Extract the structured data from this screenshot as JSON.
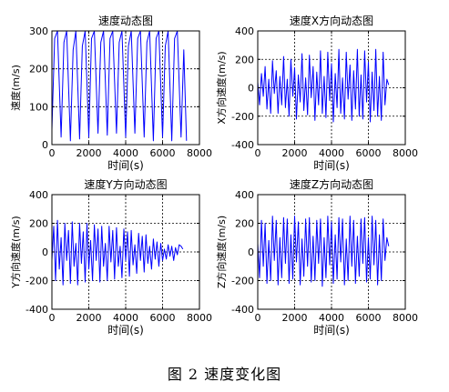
{
  "figure_caption": "图 2  速度变化图",
  "colors": {
    "line": "#0000ff",
    "axes": "#000000",
    "grid": "#000000",
    "background": "#ffffff"
  },
  "chart_data": [
    {
      "type": "line",
      "title": "速度动态图",
      "xlabel": "时间(s)",
      "ylabel": "速度(m/s)",
      "xlim": [
        0,
        8000
      ],
      "ylim": [
        0,
        300
      ],
      "xticks": [
        0,
        2000,
        4000,
        6000,
        8000
      ],
      "yticks": [
        0,
        100,
        200,
        300
      ],
      "grid": true,
      "series": [
        {
          "x": [
            0,
            150,
            300,
            500,
            650,
            800,
            1000,
            1150,
            1300,
            1500,
            1650,
            1800,
            2000,
            2150,
            2300,
            2500,
            2650,
            2800,
            3000,
            3150,
            3300,
            3500,
            3650,
            3800,
            4000,
            4150,
            4300,
            4500,
            4650,
            4800,
            5000,
            5150,
            5300,
            5500,
            5650,
            5800,
            6000,
            6150,
            6300,
            6500,
            6650,
            6800,
            7000,
            7150,
            7300
          ],
          "y": [
            40,
            280,
            300,
            20,
            270,
            300,
            10,
            250,
            300,
            15,
            260,
            300,
            20,
            280,
            300,
            30,
            270,
            300,
            25,
            280,
            300,
            30,
            270,
            300,
            20,
            260,
            300,
            30,
            280,
            300,
            20,
            270,
            300,
            10,
            280,
            300,
            20,
            260,
            300,
            10,
            280,
            300,
            20,
            250,
            10
          ]
        }
      ]
    },
    {
      "type": "line",
      "title": "速度X方向动态图",
      "xlabel": "时间(s)",
      "ylabel": "X方向速度(m/s)",
      "xlim": [
        0,
        8000
      ],
      "ylim": [
        -400,
        400
      ],
      "xticks": [
        0,
        2000,
        4000,
        6000,
        8000
      ],
      "yticks": [
        -400,
        -200,
        0,
        200,
        400
      ],
      "grid": true,
      "series": [
        {
          "x": [
            0,
            100,
            200,
            300,
            400,
            500,
            600,
            700,
            800,
            900,
            1000,
            1100,
            1200,
            1300,
            1400,
            1500,
            1600,
            1700,
            1800,
            1900,
            2000,
            2100,
            2200,
            2300,
            2400,
            2500,
            2600,
            2700,
            2800,
            2900,
            3000,
            3100,
            3200,
            3300,
            3400,
            3500,
            3600,
            3700,
            3800,
            3900,
            4000,
            4100,
            4200,
            4300,
            4400,
            4500,
            4600,
            4700,
            4800,
            4900,
            5000,
            5100,
            5200,
            5300,
            5400,
            5500,
            5600,
            5700,
            5800,
            5900,
            6000,
            6100,
            6200,
            6300,
            6400,
            6500,
            6600,
            6700,
            6800,
            6900,
            7000,
            7100
          ],
          "y": [
            40,
            -120,
            100,
            -60,
            150,
            -150,
            60,
            -180,
            190,
            -40,
            120,
            -180,
            80,
            -120,
            220,
            -140,
            60,
            -200,
            200,
            -60,
            140,
            -220,
            90,
            -100,
            240,
            -160,
            70,
            -190,
            230,
            -70,
            150,
            -230,
            110,
            -120,
            260,
            -180,
            80,
            -210,
            250,
            -90,
            170,
            -240,
            100,
            -140,
            270,
            -180,
            70,
            -220,
            250,
            -80,
            160,
            -230,
            120,
            -150,
            270,
            -200,
            90,
            -220,
            260,
            -100,
            180,
            -240,
            110,
            -160,
            270,
            -200,
            80,
            -230,
            250,
            -120,
            60,
            20
          ]
        }
      ]
    },
    {
      "type": "line",
      "title": "速度Y方向动态图",
      "xlabel": "时间(s)",
      "ylabel": "Y方向速度(m/s)",
      "xlim": [
        0,
        8000
      ],
      "ylim": [
        -400,
        400
      ],
      "xticks": [
        0,
        2000,
        4000,
        6000,
        8000
      ],
      "yticks": [
        -400,
        -200,
        0,
        200,
        400
      ],
      "grid": true,
      "series": [
        {
          "x": [
            0,
            100,
            200,
            300,
            400,
            500,
            600,
            700,
            800,
            900,
            1000,
            1100,
            1200,
            1300,
            1400,
            1500,
            1600,
            1700,
            1800,
            1900,
            2000,
            2100,
            2200,
            2300,
            2400,
            2500,
            2600,
            2700,
            2800,
            2900,
            3000,
            3100,
            3200,
            3300,
            3400,
            3500,
            3600,
            3700,
            3800,
            3900,
            4000,
            4100,
            4200,
            4300,
            4400,
            4500,
            4600,
            4700,
            4800,
            4900,
            5000,
            5100,
            5200,
            5300,
            5400,
            5500,
            5600,
            5700,
            5800,
            5900,
            6000,
            6100,
            6200,
            6300,
            6400,
            6500,
            6600,
            6700,
            6800,
            6900,
            7000,
            7100
          ],
          "y": [
            -60,
            180,
            -200,
            220,
            -120,
            100,
            -230,
            200,
            -60,
            150,
            -220,
            210,
            -100,
            60,
            -230,
            200,
            -80,
            140,
            -210,
            200,
            -120,
            80,
            -200,
            190,
            -60,
            160,
            -210,
            180,
            -100,
            60,
            -200,
            180,
            -70,
            150,
            -190,
            170,
            -100,
            40,
            -180,
            160,
            -60,
            140,
            -170,
            150,
            -90,
            50,
            -150,
            130,
            -60,
            110,
            -140,
            120,
            -80,
            40,
            -120,
            90,
            -50,
            70,
            -100,
            60,
            -60,
            20,
            -50,
            50,
            -30,
            40,
            -60,
            30,
            -20,
            50,
            40,
            20
          ]
        }
      ]
    },
    {
      "type": "line",
      "title": "速度Z方向动态图",
      "xlabel": "时间(s)",
      "ylabel": "Z方向速度(m/s)",
      "xlim": [
        0,
        8000
      ],
      "ylim": [
        -400,
        400
      ],
      "xticks": [
        0,
        2000,
        4000,
        6000,
        8000
      ],
      "yticks": [
        -400,
        -200,
        0,
        200,
        400
      ],
      "grid": true,
      "series": [
        {
          "x": [
            0,
            100,
            200,
            300,
            400,
            500,
            600,
            700,
            800,
            900,
            1000,
            1100,
            1200,
            1300,
            1400,
            1500,
            1600,
            1700,
            1800,
            1900,
            2000,
            2100,
            2200,
            2300,
            2400,
            2500,
            2600,
            2700,
            2800,
            2900,
            3000,
            3100,
            3200,
            3300,
            3400,
            3500,
            3600,
            3700,
            3800,
            3900,
            4000,
            4100,
            4200,
            4300,
            4400,
            4500,
            4600,
            4700,
            4800,
            4900,
            5000,
            5100,
            5200,
            5300,
            5400,
            5500,
            5600,
            5700,
            5800,
            5900,
            6000,
            6100,
            6200,
            6300,
            6400,
            6500,
            6600,
            6700,
            6800,
            6900,
            7000,
            7100
          ],
          "y": [
            60,
            -180,
            220,
            -100,
            200,
            -220,
            80,
            -200,
            250,
            -60,
            220,
            -230,
            100,
            -180,
            240,
            -80,
            230,
            -220,
            120,
            -190,
            250,
            -70,
            210,
            -230,
            90,
            -170,
            230,
            -100,
            240,
            -210,
            110,
            -200,
            220,
            -80,
            230,
            -240,
            100,
            -180,
            250,
            -90,
            210,
            -220,
            120,
            -190,
            240,
            -70,
            230,
            -230,
            90,
            -200,
            250,
            -100,
            220,
            -220,
            110,
            -170,
            230,
            -80,
            240,
            -210,
            100,
            -190,
            250,
            -90,
            220,
            -230,
            120,
            -200,
            230,
            -60,
            100,
            40
          ]
        }
      ]
    }
  ]
}
